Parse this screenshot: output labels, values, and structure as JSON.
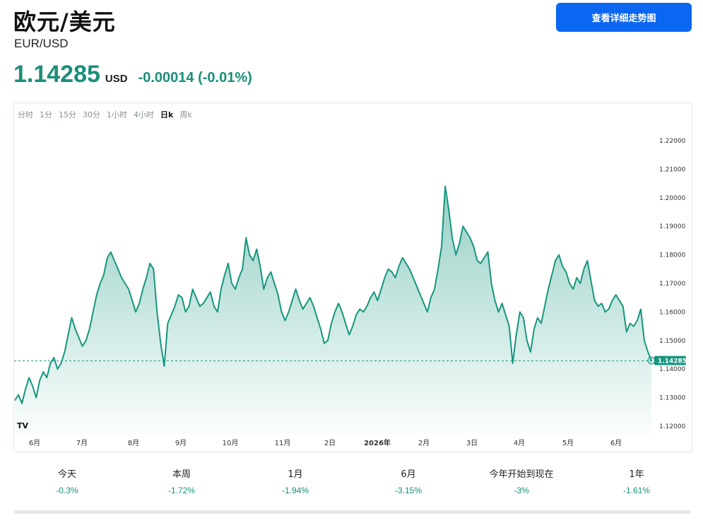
{
  "header": {
    "title": "欧元/美元",
    "subtitle": "EUR/USD",
    "price": "1.14285",
    "price_unit": "USD",
    "change": "-0.00014 (-0.01%)",
    "detail_button": "查看详细走势图"
  },
  "intervals": [
    "分时",
    "1分",
    "15分",
    "30分",
    "1小时",
    "4小时",
    "日k",
    "周k"
  ],
  "active_interval": "日k",
  "colors": {
    "accent_green": "#1a8f78",
    "line": "#16967e",
    "button_blue": "#0b66f2"
  },
  "logo_text": "TV",
  "chart_data": {
    "type": "area",
    "series": [
      {
        "values": [
          1.129,
          1.131,
          1.128,
          1.133,
          1.137,
          1.134,
          1.13,
          1.136,
          1.139,
          1.137,
          1.142,
          1.144,
          1.14,
          1.142,
          1.146,
          1.152,
          1.158,
          1.154,
          1.151,
          1.148,
          1.15,
          1.154,
          1.16,
          1.166,
          1.17,
          1.173,
          1.179,
          1.181,
          1.178,
          1.175,
          1.172,
          1.17,
          1.168,
          1.164,
          1.16,
          1.163,
          1.168,
          1.172,
          1.177,
          1.175,
          1.16,
          1.149,
          1.141,
          1.156,
          1.159,
          1.162,
          1.166,
          1.165,
          1.16,
          1.162,
          1.168,
          1.165,
          1.162,
          1.163,
          1.165,
          1.167,
          1.162,
          1.16,
          1.168,
          1.173,
          1.177,
          1.17,
          1.168,
          1.172,
          1.175,
          1.186,
          1.18,
          1.178,
          1.182,
          1.176,
          1.168,
          1.172,
          1.174,
          1.17,
          1.166,
          1.16,
          1.157,
          1.16,
          1.164,
          1.168,
          1.164,
          1.161,
          1.163,
          1.165,
          1.162,
          1.158,
          1.154,
          1.149,
          1.15,
          1.156,
          1.16,
          1.163,
          1.16,
          1.156,
          1.152,
          1.155,
          1.159,
          1.161,
          1.16,
          1.162,
          1.165,
          1.167,
          1.164,
          1.168,
          1.172,
          1.175,
          1.174,
          1.172,
          1.176,
          1.179,
          1.177,
          1.175,
          1.172,
          1.169,
          1.166,
          1.163,
          1.16,
          1.165,
          1.168,
          1.175,
          1.183,
          1.204,
          1.196,
          1.186,
          1.18,
          1.184,
          1.19,
          1.188,
          1.186,
          1.183,
          1.178,
          1.177,
          1.179,
          1.181,
          1.17,
          1.164,
          1.16,
          1.163,
          1.159,
          1.155,
          1.142,
          1.152,
          1.16,
          1.158,
          1.15,
          1.146,
          1.154,
          1.158,
          1.156,
          1.162,
          1.168,
          1.173,
          1.178,
          1.18,
          1.176,
          1.174,
          1.17,
          1.168,
          1.172,
          1.17,
          1.175,
          1.178,
          1.171,
          1.164,
          1.162,
          1.163,
          1.16,
          1.161,
          1.164,
          1.166,
          1.164,
          1.162,
          1.153,
          1.156,
          1.155,
          1.157,
          1.161,
          1.15,
          1.146,
          1.143
        ]
      }
    ],
    "x_labels": [
      "6月",
      "7月",
      "8月",
      "9月",
      "10月",
      "11月",
      "2日",
      "2026年",
      "2月",
      "3日",
      "4月",
      "5月",
      "6月"
    ],
    "y_ticks": [
      "1.22000",
      "1.21000",
      "1.20000",
      "1.19000",
      "1.18000",
      "1.17000",
      "1.16000",
      "1.15000",
      "1.14000",
      "1.13000",
      "1.12000"
    ],
    "ylim": [
      1.12,
      1.22
    ],
    "current_value": 1.14285,
    "current_label": "1.14285",
    "grid": false
  },
  "stats": [
    {
      "label": "今天",
      "value": "-0.3%"
    },
    {
      "label": "本周",
      "value": "-1.72%"
    },
    {
      "label": "1月",
      "value": "-1.94%"
    },
    {
      "label": "6月",
      "value": "-3.15%"
    },
    {
      "label": "今年开始到现在",
      "value": "-3%"
    },
    {
      "label": "1年",
      "value": "-1.61%"
    }
  ]
}
